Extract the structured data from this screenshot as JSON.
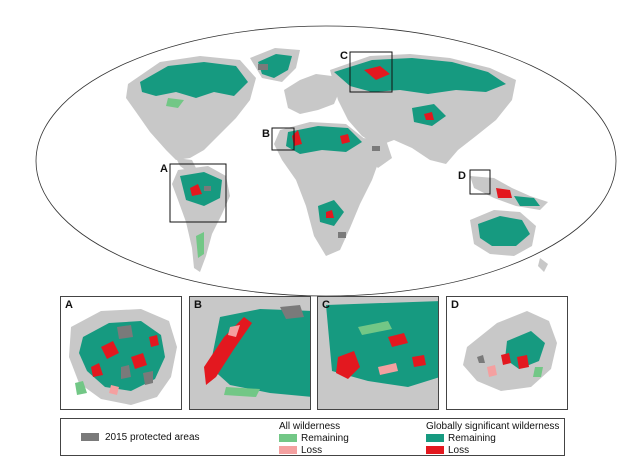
{
  "map_labels": [
    "A",
    "B",
    "C",
    "D"
  ],
  "insets": [
    {
      "label": "A"
    },
    {
      "label": "B"
    },
    {
      "label": "C"
    },
    {
      "label": "D"
    }
  ],
  "legend": {
    "protected": "2015 protected areas",
    "all_title": "All wilderness",
    "all_remaining": "Remaining",
    "all_loss": "Loss",
    "global_title": "Globally significant wilderness",
    "global_remaining": "Remaining",
    "global_loss": "Loss"
  },
  "colors": {
    "land": "#c8c8c8",
    "protected": "#7a7a7a",
    "all_remaining": "#72c786",
    "all_loss": "#f4a0a0",
    "global_remaining": "#169a80",
    "global_loss": "#e3181f",
    "ocean": "#ffffff",
    "border": "#444444"
  }
}
